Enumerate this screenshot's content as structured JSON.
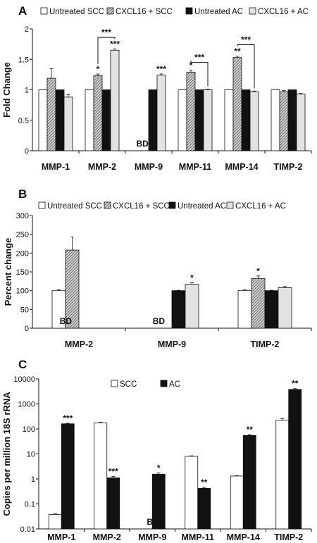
{
  "chart_data": [
    {
      "id": "A",
      "type": "bar",
      "panel_label": "A",
      "ylabel": "Fold Change",
      "ylim": [
        0,
        2
      ],
      "yscale": "linear",
      "yticks": [
        "0",
        "0.5",
        "1",
        "1.5",
        "2"
      ],
      "categories": [
        "MMP-1",
        "MMP-2",
        "MMP-9",
        "MMP-11",
        "MMP-14",
        "TIMP-2"
      ],
      "legend_position": "top",
      "series": [
        {
          "name": "Untreated SCC",
          "fill": "white",
          "values": [
            1,
            1,
            null,
            1,
            1,
            1
          ],
          "errors": [
            0,
            0,
            0,
            0,
            0,
            0
          ],
          "sig": [
            "",
            "",
            "",
            "",
            "",
            ""
          ]
        },
        {
          "name": "CXCL16 + SCC",
          "fill": "hatch",
          "values": [
            1.19,
            1.23,
            null,
            1.29,
            1.53,
            0.97
          ],
          "errors": [
            0.16,
            0.03,
            0,
            0.03,
            0.02,
            0.02
          ],
          "sig": [
            "",
            "*",
            "",
            "*",
            "**",
            ""
          ]
        },
        {
          "name": "Untreated AC",
          "fill": "black",
          "values": [
            1,
            1,
            1,
            1,
            1,
            1
          ],
          "errors": [
            0,
            0,
            0,
            0,
            0,
            0
          ],
          "sig": [
            "",
            "",
            "",
            "",
            "",
            ""
          ]
        },
        {
          "name": "CXCL16 + AC",
          "fill": "light",
          "values": [
            0.88,
            1.65,
            1.24,
            1.0,
            0.97,
            0.93
          ],
          "errors": [
            0.04,
            0.02,
            0.02,
            0.01,
            0.01,
            0.01
          ],
          "sig": [
            "",
            "***",
            "***",
            "",
            "",
            ""
          ]
        }
      ],
      "bd_labels": [
        {
          "category": "MMP-9",
          "text": "BD"
        }
      ],
      "brackets": [
        {
          "category": "MMP-2",
          "from": 1,
          "to": 3,
          "y": 1.86,
          "label": "***"
        },
        {
          "category": "MMP-11",
          "from": 1,
          "to": 3,
          "y": 1.45,
          "label": "***"
        },
        {
          "category": "MMP-14",
          "from": 1,
          "to": 3,
          "y": 1.74,
          "label": "***"
        }
      ]
    },
    {
      "id": "B",
      "type": "bar",
      "panel_label": "B",
      "ylabel": "Percent change",
      "ylim": [
        0,
        300
      ],
      "yscale": "linear",
      "yticks": [
        "0",
        "50",
        "100",
        "150",
        "200",
        "250",
        "300"
      ],
      "categories": [
        "MMP-2",
        "MMP-9",
        "TIMP-2"
      ],
      "legend_position": "top",
      "series": [
        {
          "name": "Untreated SCC",
          "fill": "white",
          "values": [
            100,
            null,
            100
          ],
          "errors": [
            2,
            0,
            2
          ],
          "sig": [
            "",
            "",
            ""
          ]
        },
        {
          "name": "CXCL16 + SCC",
          "fill": "hatch",
          "values": [
            208,
            null,
            132
          ],
          "errors": [
            35,
            0,
            7
          ],
          "sig": [
            "",
            "",
            "*"
          ]
        },
        {
          "name": "Untreated AC",
          "fill": "black",
          "values": [
            null,
            100,
            100
          ],
          "errors": [
            0,
            1,
            1
          ],
          "sig": [
            "",
            "",
            ""
          ]
        },
        {
          "name": "CXCL16 + AC",
          "fill": "light",
          "values": [
            null,
            117,
            108
          ],
          "errors": [
            0,
            4,
            3
          ],
          "sig": [
            "",
            "*",
            ""
          ]
        }
      ],
      "bd_labels": [
        {
          "category": "MMP-2",
          "text": "BD"
        },
        {
          "category": "MMP-9",
          "text": "BD"
        }
      ],
      "brackets": []
    },
    {
      "id": "C",
      "type": "bar",
      "panel_label": "C",
      "ylabel": "Copies per million 18S rRNA",
      "ylim": [
        0.01,
        10000
      ],
      "yscale": "log",
      "yticks": [
        "0.01",
        "0.1",
        "1",
        "10",
        "100",
        "1000",
        "10000"
      ],
      "categories": [
        "MMP-1",
        "MMP-2",
        "MMP-9",
        "MMP-11",
        "MMP-14",
        "TIMP-2"
      ],
      "legend_position": "top",
      "series": [
        {
          "name": "SCC",
          "fill": "white",
          "values": [
            0.038,
            175,
            null,
            8.0,
            1.3,
            220
          ],
          "errors": [
            0.002,
            10,
            0,
            0.4,
            0.05,
            40
          ],
          "sig": [
            "",
            "",
            "",
            "",
            "",
            ""
          ]
        },
        {
          "name": "AC",
          "fill": "black",
          "values": [
            160,
            1.1,
            1.55,
            0.42,
            55,
            3800
          ],
          "errors": [
            8,
            0.15,
            0.2,
            0.04,
            4,
            300
          ],
          "sig": [
            "***",
            "***",
            "*",
            "**",
            "**",
            "**"
          ]
        }
      ],
      "bd_labels": [
        {
          "category": "MMP-9",
          "text": "BD"
        }
      ],
      "brackets": []
    }
  ]
}
